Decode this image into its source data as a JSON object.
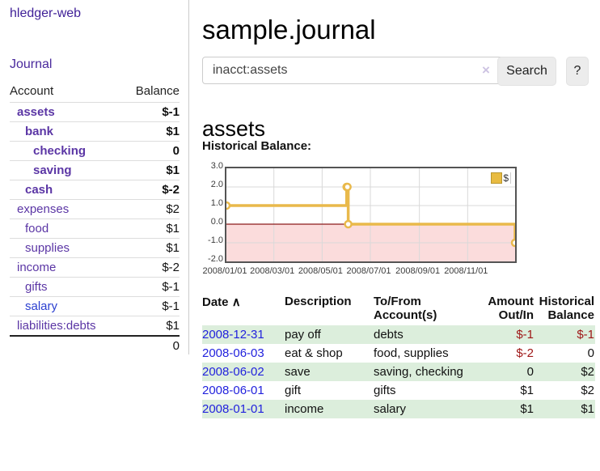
{
  "brand": "hledger-web",
  "nav": {
    "journal_label": "Journal"
  },
  "sidebar": {
    "header": {
      "account": "Account",
      "balance": "Balance"
    },
    "accounts": [
      {
        "name": "assets",
        "depth": 1,
        "bold": true,
        "blue": false,
        "balance": "$-1",
        "balance_class": "neg"
      },
      {
        "name": "bank",
        "depth": 2,
        "bold": true,
        "blue": false,
        "balance": "$1",
        "balance_class": ""
      },
      {
        "name": "checking",
        "depth": 3,
        "bold": true,
        "blue": false,
        "balance": "0",
        "balance_class": ""
      },
      {
        "name": "saving",
        "depth": 3,
        "bold": true,
        "blue": false,
        "balance": "$1",
        "balance_class": ""
      },
      {
        "name": "cash",
        "depth": 2,
        "bold": true,
        "blue": false,
        "balance": "$-2",
        "balance_class": "neg"
      },
      {
        "name": "expenses",
        "depth": 1,
        "bold": false,
        "blue": false,
        "balance": "$2",
        "balance_class": ""
      },
      {
        "name": "food",
        "depth": 2,
        "bold": false,
        "blue": false,
        "balance": "$1",
        "balance_class": ""
      },
      {
        "name": "supplies",
        "depth": 2,
        "bold": false,
        "blue": false,
        "balance": "$1",
        "balance_class": ""
      },
      {
        "name": "income",
        "depth": 1,
        "bold": false,
        "blue": false,
        "balance": "$-2",
        "balance_class": "negfaded"
      },
      {
        "name": "gifts",
        "depth": 2,
        "bold": false,
        "blue": false,
        "balance": "$-1",
        "balance_class": "negfaded"
      },
      {
        "name": "salary",
        "depth": 2,
        "bold": false,
        "blue": true,
        "balance": "$-1",
        "balance_class": "negfaded"
      },
      {
        "name": "liabilities:debts",
        "depth": 1,
        "bold": false,
        "blue": false,
        "balance": "$1",
        "balance_class": ""
      }
    ],
    "total": "0"
  },
  "header": {
    "title": "sample.journal"
  },
  "search": {
    "value": "inacct:assets",
    "clear_icon": "×",
    "button_label": "Search",
    "help_label": "?"
  },
  "account_page": {
    "heading": "assets",
    "chart_label": "Historical Balance:"
  },
  "chart_data": {
    "type": "line",
    "title": "Historical Balance",
    "interpolation": "step-after",
    "series": [
      {
        "name": "$",
        "x": [
          "2008-01-01",
          "2008-06-01",
          "2008-06-02",
          "2008-06-03",
          "2008-12-31"
        ],
        "values": [
          1,
          2,
          2,
          0,
          -1
        ]
      }
    ],
    "x_ticks": [
      "2008/01/01",
      "2008/03/01",
      "2008/05/01",
      "2008/07/01",
      "2008/09/01",
      "2008/11/01"
    ],
    "y_ticks": [
      3.0,
      2.0,
      1.0,
      0.0,
      -1.0,
      -2.0
    ],
    "ylim": [
      -2,
      3
    ],
    "x_domain": [
      "2008-01-01",
      "2008-12-31"
    ],
    "grid": true,
    "legend": {
      "label": "$",
      "position": "top-right"
    },
    "colors": {
      "line": "#e9b94b",
      "marker_fill": "#ffffff",
      "negative_region_fill": "#fbdcdc",
      "zero_line": "#8b1a1a",
      "grid": "#d9d9d9",
      "border": "#545454",
      "legend_swatch": "#e8bb41"
    }
  },
  "register": {
    "columns": {
      "date": "Date",
      "sort_icon": "∧",
      "description": "Description",
      "accounts": "To/From Account(s)",
      "amount": "Amount Out/In",
      "balance": "Historical Balance"
    },
    "rows": [
      {
        "date": "2008-12-31",
        "description": "pay off",
        "accounts": "debts",
        "amount": "$-1",
        "amount_class": "neg",
        "balance": "$-1",
        "balance_class": "neg"
      },
      {
        "date": "2008-06-03",
        "description": "eat & shop",
        "accounts": "food, supplies",
        "amount": "$-2",
        "amount_class": "neg",
        "balance": "0",
        "balance_class": ""
      },
      {
        "date": "2008-06-02",
        "description": "save",
        "accounts": "saving, checking",
        "amount": "0",
        "amount_class": "",
        "balance": "$2",
        "balance_class": ""
      },
      {
        "date": "2008-06-01",
        "description": "gift",
        "accounts": "gifts",
        "amount": "$1",
        "amount_class": "",
        "balance": "$2",
        "balance_class": ""
      },
      {
        "date": "2008-01-01",
        "description": "income",
        "accounts": "salary",
        "amount": "$1",
        "amount_class": "",
        "balance": "$1",
        "balance_class": ""
      }
    ]
  }
}
